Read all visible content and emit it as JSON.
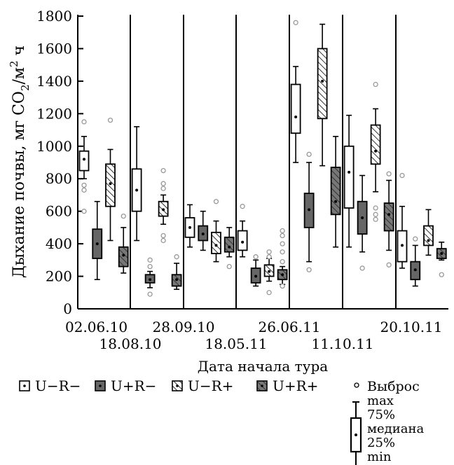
{
  "chart_data": {
    "type": "box",
    "ylabel": "Дыхание почвы, мг CO2/м2 ч",
    "ylabel_parts": {
      "main": "Дыхание почвы, мг CO",
      "sub": "2",
      "mid": "/м",
      "sup": "2",
      "end": " ч"
    },
    "xlabel": "Дата начала тура",
    "ylim": [
      0,
      1800
    ],
    "yticks": [
      0,
      200,
      400,
      600,
      800,
      1000,
      1200,
      1400,
      1600,
      1800
    ],
    "tours": [
      {
        "label": "02.06.10",
        "label_row": 1
      },
      {
        "label": "18.08.10",
        "label_row": 2
      },
      {
        "label": "28.09.10",
        "label_row": 1
      },
      {
        "label": "18.05.11",
        "label_row": 2
      },
      {
        "label": "26.06.11",
        "label_row": 1
      },
      {
        "label": "11.10.11",
        "label_row": 2
      },
      {
        "label": "20.10.11",
        "label_row": 1
      }
    ],
    "series_keys": [
      "U-R-",
      "U+R-",
      "U-R+",
      "U+R+"
    ],
    "boxes": [
      {
        "tour": 0,
        "series": "U-R-",
        "min": 800,
        "q1": 850,
        "median": 920,
        "q3": 970,
        "max": 1060,
        "outliers": [
          1150,
          760,
          730,
          600
        ]
      },
      {
        "tour": 0,
        "series": "U+R-",
        "min": 180,
        "q1": 310,
        "median": 400,
        "q3": 490,
        "max": 660,
        "outliers": []
      },
      {
        "tour": 0,
        "series": "U-R+",
        "min": 420,
        "q1": 630,
        "median": 770,
        "q3": 890,
        "max": 980,
        "outliers": [
          1160
        ]
      },
      {
        "tour": 0,
        "series": "U+R+",
        "min": 220,
        "q1": 260,
        "median": 330,
        "q3": 380,
        "max": 500,
        "outliers": [
          570
        ]
      },
      {
        "tour": 1,
        "series": "U-R-",
        "min": 420,
        "q1": 600,
        "median": 730,
        "q3": 860,
        "max": 1120,
        "outliers": []
      },
      {
        "tour": 1,
        "series": "U+R-",
        "min": 130,
        "q1": 160,
        "median": 180,
        "q3": 210,
        "max": 230,
        "outliers": [
          300,
          260,
          90
        ]
      },
      {
        "tour": 1,
        "series": "U-R+",
        "min": 520,
        "q1": 570,
        "median": 610,
        "q3": 660,
        "max": 700,
        "outliers": [
          850,
          770,
          740,
          450,
          420
        ]
      },
      {
        "tour": 1,
        "series": "U+R+",
        "min": 120,
        "q1": 140,
        "median": 180,
        "q3": 210,
        "max": 280,
        "outliers": [
          320
        ]
      },
      {
        "tour": 2,
        "series": "U-R-",
        "min": 380,
        "q1": 440,
        "median": 500,
        "q3": 560,
        "max": 640,
        "outliers": []
      },
      {
        "tour": 2,
        "series": "U+R-",
        "min": 360,
        "q1": 420,
        "median": 460,
        "q3": 510,
        "max": 600,
        "outliers": []
      },
      {
        "tour": 2,
        "series": "U-R+",
        "min": 290,
        "q1": 340,
        "median": 390,
        "q3": 470,
        "max": 540,
        "outliers": [
          660
        ]
      },
      {
        "tour": 2,
        "series": "U+R+",
        "min": 320,
        "q1": 350,
        "median": 380,
        "q3": 440,
        "max": 500,
        "outliers": [
          260
        ]
      },
      {
        "tour": 3,
        "series": "U-R-",
        "min": 320,
        "q1": 360,
        "median": 410,
        "q3": 480,
        "max": 540,
        "outliers": [
          630
        ]
      },
      {
        "tour": 3,
        "series": "U+R-",
        "min": 140,
        "q1": 160,
        "median": 200,
        "q3": 250,
        "max": 300,
        "outliers": [
          320
        ]
      },
      {
        "tour": 3,
        "series": "U-R+",
        "min": 170,
        "q1": 200,
        "median": 230,
        "q3": 270,
        "max": 310,
        "outliers": [
          350,
          320,
          100
        ]
      },
      {
        "tour": 3,
        "series": "U+R+",
        "min": 150,
        "q1": 180,
        "median": 210,
        "q3": 240,
        "max": 260,
        "outliers": [
          480,
          450,
          400,
          350,
          290,
          140
        ]
      },
      {
        "tour": 4,
        "series": "U-R-",
        "min": 900,
        "q1": 1080,
        "median": 1180,
        "q3": 1380,
        "max": 1490,
        "outliers": [
          1760
        ]
      },
      {
        "tour": 4,
        "series": "U+R-",
        "min": 290,
        "q1": 500,
        "median": 610,
        "q3": 710,
        "max": 900,
        "outliers": [
          950,
          240
        ]
      },
      {
        "tour": 4,
        "series": "U-R+",
        "min": 880,
        "q1": 1170,
        "median": 1400,
        "q3": 1600,
        "max": 1750,
        "outliers": []
      },
      {
        "tour": 4,
        "series": "U+R+",
        "min": 380,
        "q1": 580,
        "median": 660,
        "q3": 870,
        "max": 1060,
        "outliers": []
      },
      {
        "tour": 5,
        "series": "U-R-",
        "min": 380,
        "q1": 620,
        "median": 840,
        "q3": 1000,
        "max": 1190,
        "outliers": []
      },
      {
        "tour": 5,
        "series": "U+R-",
        "min": 350,
        "q1": 460,
        "median": 560,
        "q3": 660,
        "max": 820,
        "outliers": [
          250
        ]
      },
      {
        "tour": 5,
        "series": "U-R+",
        "min": 720,
        "q1": 890,
        "median": 970,
        "q3": 1130,
        "max": 1230,
        "outliers": [
          1380,
          620,
          580,
          550
        ]
      },
      {
        "tour": 5,
        "series": "U+R+",
        "min": 360,
        "q1": 480,
        "median": 580,
        "q3": 650,
        "max": 790,
        "outliers": [
          830,
          270
        ]
      },
      {
        "tour": 6,
        "series": "U-R-",
        "min": 250,
        "q1": 290,
        "median": 390,
        "q3": 480,
        "max": 630,
        "outliers": [
          820
        ]
      },
      {
        "tour": 6,
        "series": "U+R-",
        "min": 140,
        "q1": 180,
        "median": 240,
        "q3": 290,
        "max": 390,
        "outliers": [
          430
        ]
      },
      {
        "tour": 6,
        "series": "U-R+",
        "min": 330,
        "q1": 390,
        "median": 420,
        "q3": 510,
        "max": 610,
        "outliers": []
      },
      {
        "tour": 6,
        "series": "U+R+",
        "min": 300,
        "q1": 310,
        "median": 340,
        "q3": 370,
        "max": 410,
        "outliers": [
          210
        ]
      }
    ]
  },
  "legend": {
    "items": [
      {
        "key": "U-R-",
        "label": "U−R−"
      },
      {
        "key": "U+R-",
        "label": "U+R−"
      },
      {
        "key": "U-R+",
        "label": "U−R+"
      },
      {
        "key": "U+R+",
        "label": "U+R+"
      }
    ],
    "outlier_label": "Выброс",
    "max_label": "max",
    "q3_label": "75%",
    "median_label": "медиана",
    "q1_label": "25%",
    "min_label": "min"
  },
  "colors": {
    "U-R-": "#ffffff",
    "U+R-": "#666666",
    "U-R+": "#ffffff",
    "U+R+": "#777777",
    "outlier": "#999999",
    "stroke": "#000000"
  }
}
